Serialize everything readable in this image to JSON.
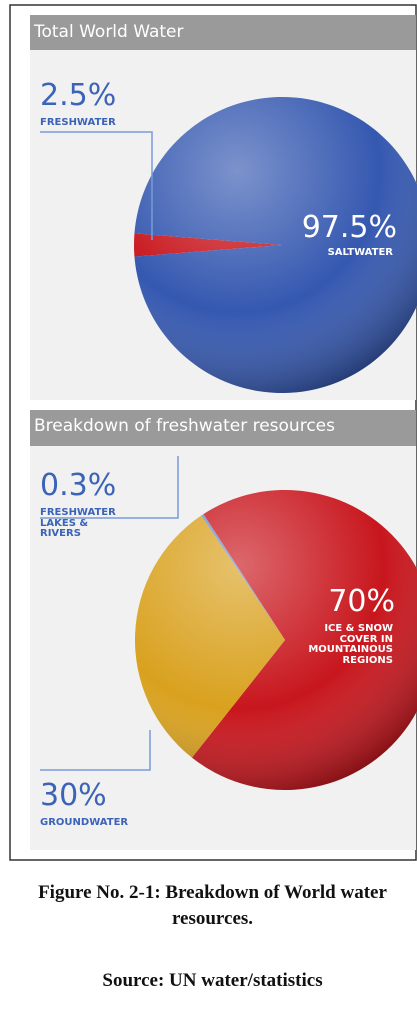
{
  "chart_data": [
    {
      "type": "pie",
      "title": "Total World Water",
      "categories": [
        "FRESHWATER",
        "SALTWATER"
      ],
      "values": [
        2.5,
        97.5
      ],
      "value_labels": [
        "2.5%",
        "97.5%"
      ],
      "colors": [
        "#c8161d",
        "#3558b0"
      ]
    },
    {
      "type": "pie",
      "title": "Breakdown of freshwater resources",
      "categories": [
        "FRESHWATER\nLAKES &\nRIVERS",
        "ICE & SNOW\nCOVER IN\nMOUNTAINOUS\nREGIONS",
        "GROUNDWATER"
      ],
      "values": [
        0.3,
        70,
        30
      ],
      "value_labels": [
        "0.3%",
        "70%",
        "30%"
      ],
      "colors": [
        "#6f8fd0",
        "#c8161d",
        "#d9a11e"
      ]
    }
  ],
  "caption": {
    "title": "Figure No. 2-1: Breakdown of World water resources.",
    "source": "Source: UN water/statistics"
  }
}
